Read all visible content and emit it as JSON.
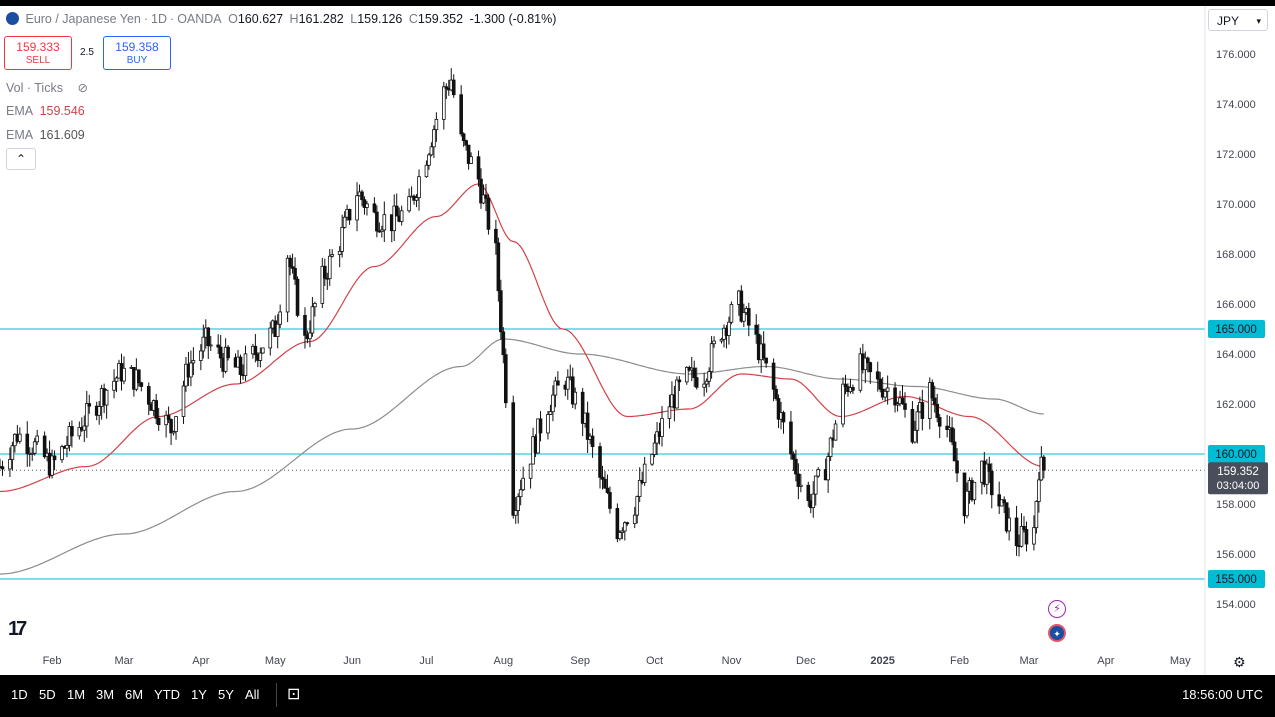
{
  "header": {
    "symbol": "Euro / Japanese Yen",
    "interval": "1D",
    "exchange": "OANDA",
    "dot": "·",
    "open_label": "O",
    "open": "160.627",
    "high_label": "H",
    "high": "161.282",
    "low_label": "L",
    "low": "159.126",
    "close_label": "C",
    "close": "159.352",
    "change": "-1.300 (-0.81%)"
  },
  "trade": {
    "sell_price": "159.333",
    "sell_label": "SELL",
    "spread": "2.5",
    "buy_price": "159.358",
    "buy_label": "BUY"
  },
  "indicators": {
    "vol_label": "Vol · Ticks",
    "ema1_label": "EMA",
    "ema1_value": "159.546",
    "ema1_color": "#d3424a",
    "ema2_label": "EMA",
    "ema2_value": "161.609",
    "ema2_color": "#8c8c8c"
  },
  "currency": "JPY",
  "time_ranges": [
    "1D",
    "5D",
    "1M",
    "3M",
    "6M",
    "YTD",
    "1Y",
    "5Y",
    "All"
  ],
  "clock": "18:56:00 UTC",
  "icons": {
    "logo": "tradingview-logo-icon",
    "settings": "gear-icon",
    "compare": "calendar-range-icon",
    "hide": "eye-off-icon",
    "collapse": "chevron-up-icon",
    "lightning": "lightning-icon",
    "flag": "eu-flag-icon"
  },
  "chart_data": {
    "type": "candlestick",
    "title": "Euro / Japanese Yen · 1D · OANDA",
    "ylim": [
      153.0,
      177.0
    ],
    "y_ticks": [
      "154.000",
      "156.000",
      "158.000",
      "160.000",
      "162.000",
      "164.000",
      "166.000",
      "168.000",
      "170.000",
      "172.000",
      "174.000",
      "176.000"
    ],
    "x_ticks": [
      "Feb",
      "Mar",
      "Apr",
      "May",
      "Jun",
      "Jul",
      "Aug",
      "Sep",
      "Oct",
      "Nov",
      "Dec",
      "2025",
      "Feb",
      "Mar",
      "Apr",
      "May"
    ],
    "x_tick_dates": [
      "2024-02-01",
      "2024-03-01",
      "2024-04-01",
      "2024-05-01",
      "2024-06-01",
      "2024-07-01",
      "2024-08-01",
      "2024-09-01",
      "2024-10-01",
      "2024-11-01",
      "2024-12-01",
      "2025-01-01",
      "2025-02-01",
      "2025-03-01",
      "2025-04-01",
      "2025-05-01"
    ],
    "x_range": [
      "2024-01-11",
      "2025-05-11"
    ],
    "horizontal_levels": [
      {
        "value": 165.0,
        "label": "165.000",
        "color": "#00bcd4"
      },
      {
        "value": 160.0,
        "label": "160.000",
        "color": "#00bcd4"
      },
      {
        "value": 155.0,
        "label": "155.000",
        "color": "#00bcd4"
      }
    ],
    "last_price": {
      "value": 159.352,
      "label": "159.352",
      "countdown": "03:04:00"
    },
    "close_path": [
      [
        "2024-01-11",
        159.5
      ],
      [
        "2024-01-18",
        160.8
      ],
      [
        "2024-01-25",
        160.3
      ],
      [
        "2024-02-01",
        159.5
      ],
      [
        "2024-02-08",
        160.6
      ],
      [
        "2024-02-15",
        161.5
      ],
      [
        "2024-02-22",
        162.5
      ],
      [
        "2024-02-29",
        163.3
      ],
      [
        "2024-03-06",
        163.0
      ],
      [
        "2024-03-13",
        162.0
      ],
      [
        "2024-03-20",
        161.0
      ],
      [
        "2024-03-27",
        163.5
      ],
      [
        "2024-04-03",
        164.5
      ],
      [
        "2024-04-10",
        163.8
      ],
      [
        "2024-04-17",
        163.3
      ],
      [
        "2024-04-24",
        164.2
      ],
      [
        "2024-05-01",
        165.0
      ],
      [
        "2024-05-06",
        168.0
      ],
      [
        "2024-05-13",
        164.5
      ],
      [
        "2024-05-20",
        167.0
      ],
      [
        "2024-05-27",
        168.5
      ],
      [
        "2024-06-03",
        170.5
      ],
      [
        "2024-06-10",
        169.5
      ],
      [
        "2024-06-17",
        169.3
      ],
      [
        "2024-06-24",
        169.8
      ],
      [
        "2024-07-01",
        172.0
      ],
      [
        "2024-07-08",
        174.5
      ],
      [
        "2024-07-11",
        175.0
      ],
      [
        "2024-07-15",
        172.5
      ],
      [
        "2024-07-22",
        171.0
      ],
      [
        "2024-07-29",
        168.0
      ],
      [
        "2024-08-02",
        162.5
      ],
      [
        "2024-08-05",
        158.0
      ],
      [
        "2024-08-12",
        160.0
      ],
      [
        "2024-08-19",
        162.0
      ],
      [
        "2024-08-26",
        163.0
      ],
      [
        "2024-09-02",
        161.5
      ],
      [
        "2024-09-09",
        159.0
      ],
      [
        "2024-09-16",
        157.0
      ],
      [
        "2024-09-23",
        158.0
      ],
      [
        "2024-09-30",
        160.0
      ],
      [
        "2024-10-07",
        162.0
      ],
      [
        "2024-10-14",
        163.0
      ],
      [
        "2024-10-21",
        163.2
      ],
      [
        "2024-10-28",
        165.0
      ],
      [
        "2024-11-04",
        166.0
      ],
      [
        "2024-11-11",
        164.5
      ],
      [
        "2024-11-18",
        162.5
      ],
      [
        "2024-11-25",
        160.0
      ],
      [
        "2024-12-02",
        158.0
      ],
      [
        "2024-12-09",
        159.5
      ],
      [
        "2024-12-16",
        162.5
      ],
      [
        "2024-12-23",
        163.5
      ],
      [
        "2024-12-30",
        162.8
      ],
      [
        "2025-01-06",
        162.5
      ],
      [
        "2025-01-13",
        161.0
      ],
      [
        "2025-01-20",
        162.5
      ],
      [
        "2025-01-27",
        161.0
      ],
      [
        "2025-02-03",
        158.0
      ],
      [
        "2025-02-10",
        159.5
      ],
      [
        "2025-02-17",
        158.0
      ],
      [
        "2025-02-24",
        156.5
      ],
      [
        "2025-03-03",
        157.0
      ],
      [
        "2025-03-05",
        159.5
      ],
      [
        "2025-03-07",
        159.352
      ]
    ],
    "ema_fast": {
      "name": "EMA",
      "value": "159.546",
      "color": "#d3424a",
      "points": [
        [
          "2024-01-11",
          158.5
        ],
        [
          "2024-02-15",
          159.5
        ],
        [
          "2024-03-15",
          161.5
        ],
        [
          "2024-04-15",
          162.8
        ],
        [
          "2024-05-15",
          164.5
        ],
        [
          "2024-06-10",
          167.5
        ],
        [
          "2024-07-05",
          169.5
        ],
        [
          "2024-07-22",
          170.8
        ],
        [
          "2024-08-05",
          168.5
        ],
        [
          "2024-08-25",
          165.0
        ],
        [
          "2024-09-20",
          161.5
        ],
        [
          "2024-10-15",
          161.8
        ],
        [
          "2024-11-05",
          163.2
        ],
        [
          "2024-11-25",
          163.0
        ],
        [
          "2024-12-15",
          161.5
        ],
        [
          "2025-01-10",
          162.3
        ],
        [
          "2025-02-05",
          161.5
        ],
        [
          "2025-03-07",
          159.5
        ]
      ]
    },
    "ema_slow": {
      "name": "EMA",
      "value": "161.609",
      "color": "#8c8c8c",
      "points": [
        [
          "2024-01-11",
          155.2
        ],
        [
          "2024-03-01",
          156.8
        ],
        [
          "2024-04-15",
          158.5
        ],
        [
          "2024-06-01",
          161.0
        ],
        [
          "2024-07-15",
          163.5
        ],
        [
          "2024-08-01",
          164.6
        ],
        [
          "2024-09-01",
          164.0
        ],
        [
          "2024-10-15",
          163.2
        ],
        [
          "2024-11-15",
          163.5
        ],
        [
          "2024-12-15",
          163.0
        ],
        [
          "2025-01-15",
          162.7
        ],
        [
          "2025-02-15",
          162.2
        ],
        [
          "2025-03-07",
          161.6
        ]
      ]
    }
  }
}
